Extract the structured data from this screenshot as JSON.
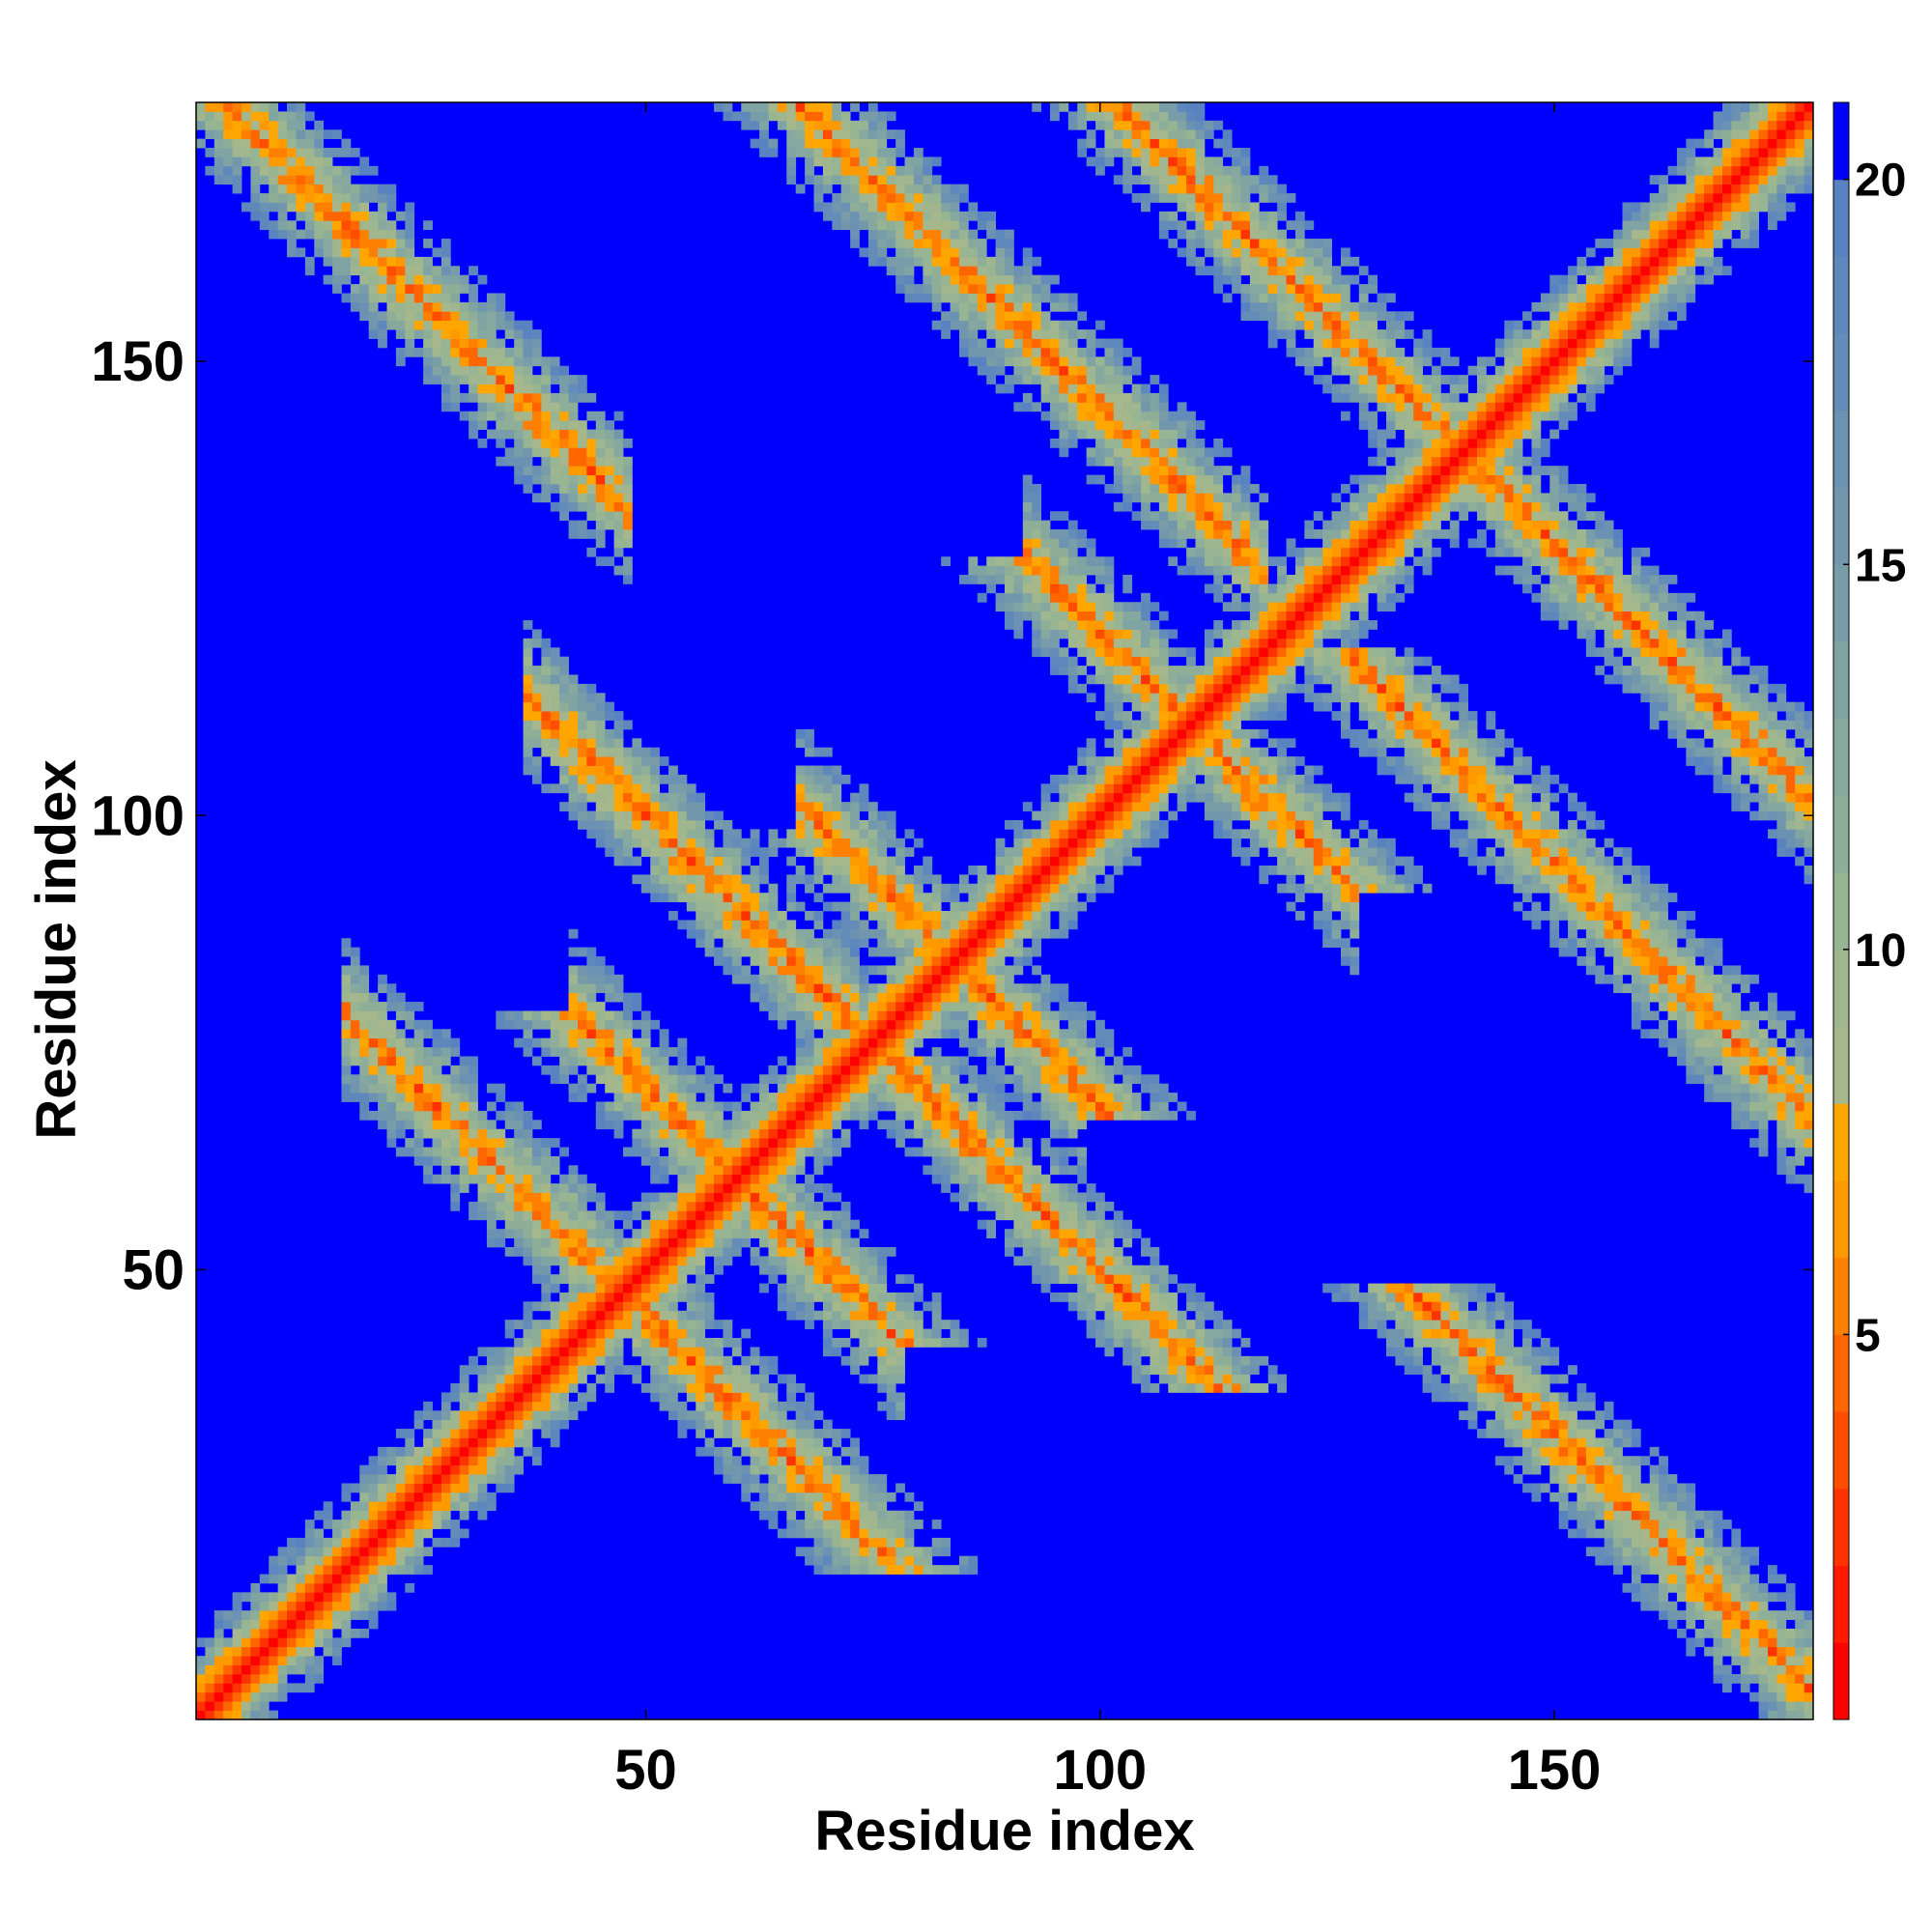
{
  "chart_data": {
    "type": "heatmap",
    "title": "",
    "xlabel": "Residue index",
    "ylabel": "Residue index",
    "x_range": [
      1,
      178
    ],
    "y_range": [
      1,
      178
    ],
    "x_ticks": [
      50,
      100,
      150
    ],
    "y_ticks": [
      50,
      100,
      150
    ],
    "colorbar": {
      "range": [
        0,
        21
      ],
      "ticks": [
        5,
        10,
        15,
        20
      ],
      "levels": [
        {
          "from": 0,
          "to": 1,
          "color": "#ff0000"
        },
        {
          "from": 1,
          "to": 2,
          "color": "#ff1a00"
        },
        {
          "from": 2,
          "to": 3,
          "color": "#ff3300"
        },
        {
          "from": 3,
          "to": 4,
          "color": "#ff4d00"
        },
        {
          "from": 4,
          "to": 5,
          "color": "#ff6600"
        },
        {
          "from": 5,
          "to": 6,
          "color": "#ff8000"
        },
        {
          "from": 6,
          "to": 7,
          "color": "#ff9900"
        },
        {
          "from": 7,
          "to": 8,
          "color": "#ffa600"
        },
        {
          "from": 8,
          "to": 9,
          "color": "#a7b78c"
        },
        {
          "from": 9,
          "to": 10,
          "color": "#9fb68f"
        },
        {
          "from": 10,
          "to": 11,
          "color": "#97b592"
        },
        {
          "from": 11,
          "to": 12,
          "color": "#8fae98"
        },
        {
          "from": 12,
          "to": 13,
          "color": "#87a89e"
        },
        {
          "from": 13,
          "to": 14,
          "color": "#80a3a3"
        },
        {
          "from": 14,
          "to": 15,
          "color": "#789da8"
        },
        {
          "from": 15,
          "to": 16,
          "color": "#7297ad"
        },
        {
          "from": 16,
          "to": 17,
          "color": "#6b92b2"
        },
        {
          "from": 17,
          "to": 18,
          "color": "#648cb8"
        },
        {
          "from": 18,
          "to": 19,
          "color": "#5e87bc"
        },
        {
          "from": 19,
          "to": 20,
          "color": "#5882c0"
        },
        {
          "from": 20,
          "to": 21,
          "color": "#0000ff"
        }
      ]
    },
    "matrix_shape": [
      178,
      178
    ],
    "matrix_description_note": "Symmetric residue–residue distance map: main diagonal ~0-3 (red), off-diagonal contact bands (antiparallel) between residues ~2-45/20-60/45-70/70-95/95-125/125-160 and ~120-175, values >20 shown as blue background",
    "bands": [
      {
        "type": "diagonal",
        "width": 9
      },
      {
        "type": "anti",
        "i_range": [
          2,
          45
        ],
        "sum": 182,
        "width": 6
      },
      {
        "type": "anti",
        "i_range": [
          20,
          60
        ],
        "sum": 95,
        "width": 5
      },
      {
        "type": "anti",
        "i_range": [
          45,
          75
        ],
        "sum": 120,
        "width": 5
      },
      {
        "type": "anti",
        "i_range": [
          70,
          95
        ],
        "sum": 168,
        "width": 5
      },
      {
        "type": "anti",
        "i_range": [
          95,
          125
        ],
        "sum": 220,
        "width": 5
      },
      {
        "type": "anti",
        "i_range": [
          118,
          175
        ],
        "sum": 280,
        "width": 6
      },
      {
        "type": "anti",
        "i_range": [
          60,
          115
        ],
        "sum": 245,
        "width": 5
      },
      {
        "type": "anti",
        "i_range": [
          40,
          70
        ],
        "sum": 150,
        "width": 4
      }
    ]
  }
}
